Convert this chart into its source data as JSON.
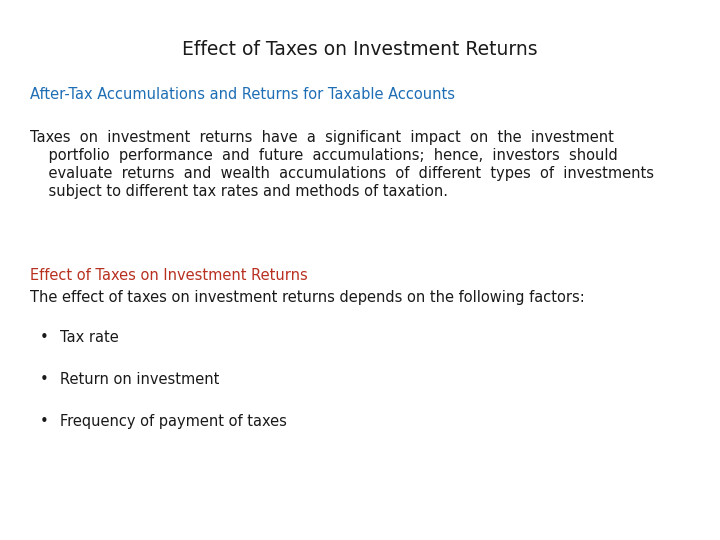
{
  "title": "Effect of Taxes on Investment Returns",
  "title_color": "#1a1a1a",
  "title_fontsize": 13.5,
  "subtitle": "After-Tax Accumulations and Returns for Taxable Accounts",
  "subtitle_color": "#1e6eb5",
  "subtitle_fontsize": 10.5,
  "body_line1": "Taxes  on  investment  returns  have  a  significant  impact  on  the  investment",
  "body_line2": "    portfolio  performance  and  future  accumulations;  hence,  investors  should",
  "body_line3": "    evaluate  returns  and  wealth  accumulations  of  different  types  of  investments",
  "body_line4": "    subject to different tax rates and methods of taxation.",
  "body_color": "#1a1a1a",
  "body_fontsize": 10.5,
  "section_heading": "Effect of Taxes on Investment Returns",
  "section_heading_color": "#b83020",
  "section_heading_fontsize": 10.5,
  "section_intro": "The effect of taxes on investment returns depends on the following factors:",
  "section_intro_color": "#1a1a1a",
  "section_intro_fontsize": 10.5,
  "bullet_points": [
    "Tax rate",
    "Return on investment",
    "Frequency of payment of taxes"
  ],
  "bullet_color": "#1a1a1a",
  "bullet_fontsize": 10.5,
  "background_color": "#ffffff",
  "font_family": "DejaVu Sans Condensed"
}
